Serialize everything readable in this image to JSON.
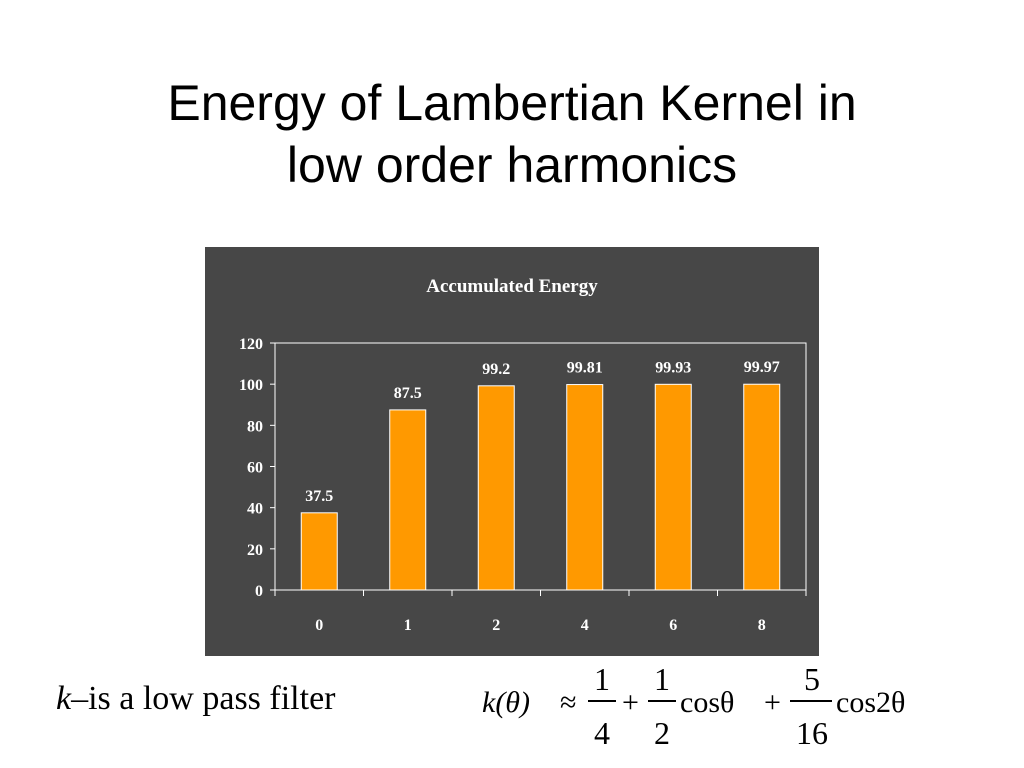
{
  "slide": {
    "title_line1": "Energy of Lambertian Kernel in",
    "title_line2": "low order harmonics",
    "caption_var": "k",
    "caption_dash": "–",
    "caption_text": "is a low pass filter"
  },
  "formula": {
    "lhs": "k(θ)",
    "approx": "≈",
    "term1_num": "1",
    "term1_den": "4",
    "plus": "+",
    "term2_num": "1",
    "term2_den": "2",
    "term2_fn": "cosθ",
    "term3_num": "5",
    "term3_den": "16",
    "term3_fn": "cos2θ"
  },
  "colors": {
    "bar": "#FF9900",
    "bar_edge": "#FFFFFF",
    "panel": "#474747",
    "plot_area": "#474747",
    "text": "#FFFFFF"
  },
  "chart_data": {
    "type": "bar",
    "title": "Accumulated Energy",
    "categories": [
      "0",
      "1",
      "2",
      "4",
      "6",
      "8"
    ],
    "values": [
      37.5,
      87.5,
      99.2,
      99.81,
      99.93,
      99.97
    ],
    "data_labels": [
      "37.5",
      "87.5",
      "99.2",
      "99.81",
      "99.93",
      "99.97"
    ],
    "ylim": [
      0,
      120
    ],
    "yticks": [
      0,
      20,
      40,
      60,
      80,
      100,
      120
    ],
    "ytick_labels": [
      "0",
      "20",
      "40",
      "60",
      "80",
      "100",
      "120"
    ],
    "xlabel": "",
    "ylabel": "",
    "grid": false,
    "legend": false
  }
}
